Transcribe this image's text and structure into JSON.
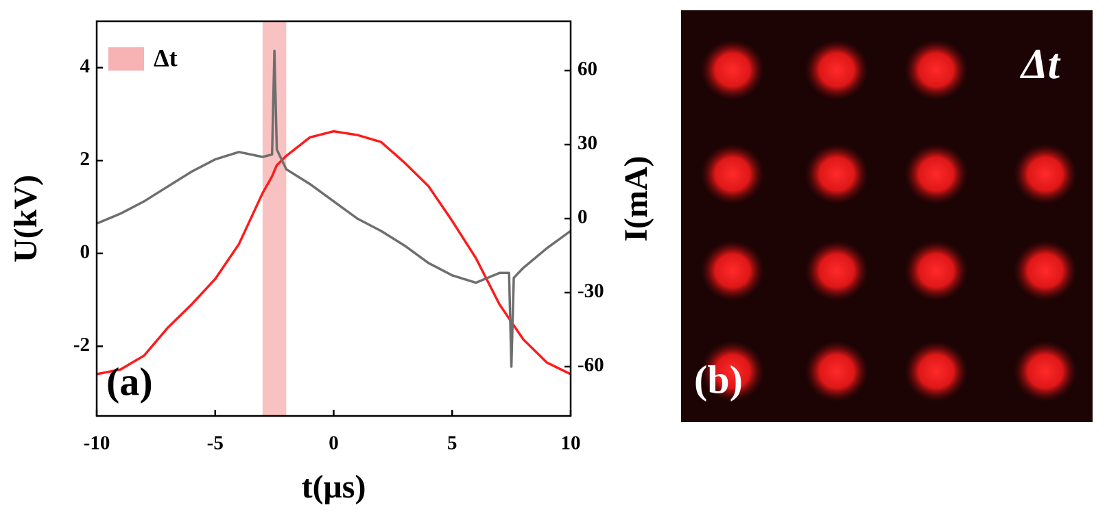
{
  "chart_data": {
    "type": "line",
    "panel_label": "(a)",
    "xlabel": "t(μs)",
    "ylabel": "U(kV)",
    "y2label": "I(mA)",
    "x": [
      -10,
      -9,
      -8,
      -7,
      -6,
      -5,
      -4,
      -3,
      -2.6,
      -2.5,
      -2.4,
      -2,
      -1,
      0,
      1,
      2,
      3,
      4,
      5,
      6,
      7,
      7.4,
      7.5,
      7.6,
      8,
      9,
      10
    ],
    "series": [
      {
        "color": "#ff1a1a",
        "values": [
          -2.6,
          -2.5,
          -2.2,
          -1.6,
          -1.1,
          -0.55,
          0.2,
          1.3,
          1.66,
          1.78,
          1.9,
          2.1,
          2.5,
          2.63,
          2.55,
          2.4,
          1.95,
          1.45,
          0.7,
          -0.1,
          -1.1,
          -1.4,
          -1.48,
          -1.55,
          -1.85,
          -2.35,
          -2.6
        ]
      },
      {
        "color": "#6e6e6e",
        "axis": "y2",
        "values": [
          -2,
          2,
          7,
          13,
          19,
          24,
          27,
          25,
          26,
          68,
          28,
          20,
          14,
          7,
          0,
          -5,
          -11,
          -18,
          -23,
          -26,
          -22,
          -22,
          -60,
          -24,
          -20,
          -12,
          -5
        ]
      }
    ],
    "span": [
      -3,
      -2
    ],
    "span_label": "Δt",
    "span_color": "#f7b3b3",
    "xlim": [
      -10,
      10
    ],
    "xticks": [
      -10,
      -5,
      0,
      5,
      10
    ],
    "ylim": [
      -3.5,
      5
    ],
    "yticks": [
      -2,
      0,
      2,
      4
    ],
    "y2lim": [
      -80,
      80
    ],
    "y2ticks": [
      -60,
      -30,
      0,
      30,
      60
    ]
  },
  "panel_b": {
    "label": "(b)",
    "annotation": "Δt"
  }
}
